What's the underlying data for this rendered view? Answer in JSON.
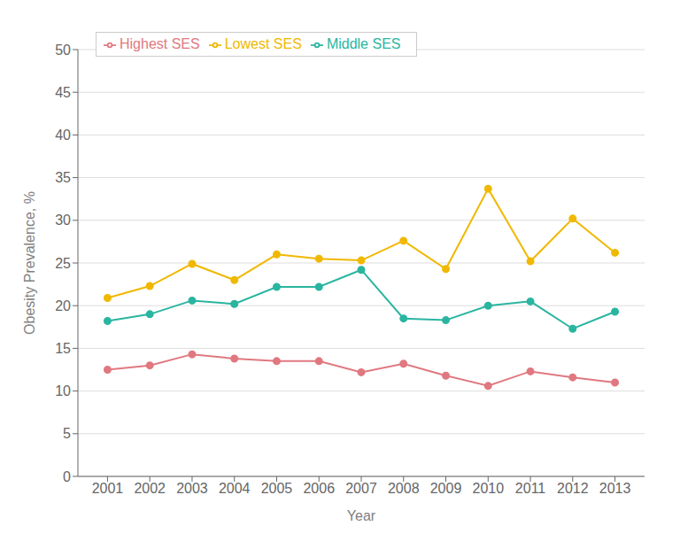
{
  "chart_data": {
    "type": "line",
    "x": [
      2001,
      2002,
      2003,
      2004,
      2005,
      2006,
      2007,
      2008,
      2009,
      2010,
      2011,
      2012,
      2013
    ],
    "xlim": [
      2000.3,
      2013.7
    ],
    "xticks": [
      2001,
      2002,
      2003,
      2004,
      2005,
      2006,
      2007,
      2008,
      2009,
      2010,
      2011,
      2012,
      2013
    ],
    "ylim": [
      0,
      50
    ],
    "yticks": [
      0,
      5,
      10,
      15,
      20,
      25,
      30,
      35,
      40,
      45,
      50
    ],
    "xlabel": "Year",
    "ylabel": "Obesity Prevalence, %",
    "grid": true,
    "legend": "upper left",
    "series": [
      {
        "name": "Highest SES",
        "color": "#e07880",
        "marker": "circle",
        "values": [
          12.5,
          13.0,
          14.3,
          13.8,
          13.5,
          13.5,
          12.2,
          13.2,
          11.8,
          10.6,
          12.3,
          11.6,
          11.0
        ]
      },
      {
        "name": "Middle SES",
        "color": "#2ab5a0",
        "marker": "circle",
        "values": [
          18.2,
          19.0,
          20.6,
          20.2,
          22.2,
          22.2,
          24.2,
          18.5,
          18.3,
          20.0,
          20.5,
          17.3,
          19.3
        ]
      },
      {
        "name": "Lowest SES",
        "color": "#f0b800",
        "marker": "circle",
        "values": [
          20.9,
          22.3,
          24.9,
          23.0,
          26.0,
          25.5,
          25.3,
          27.6,
          24.3,
          33.7,
          25.2,
          30.2,
          26.2
        ]
      }
    ]
  }
}
